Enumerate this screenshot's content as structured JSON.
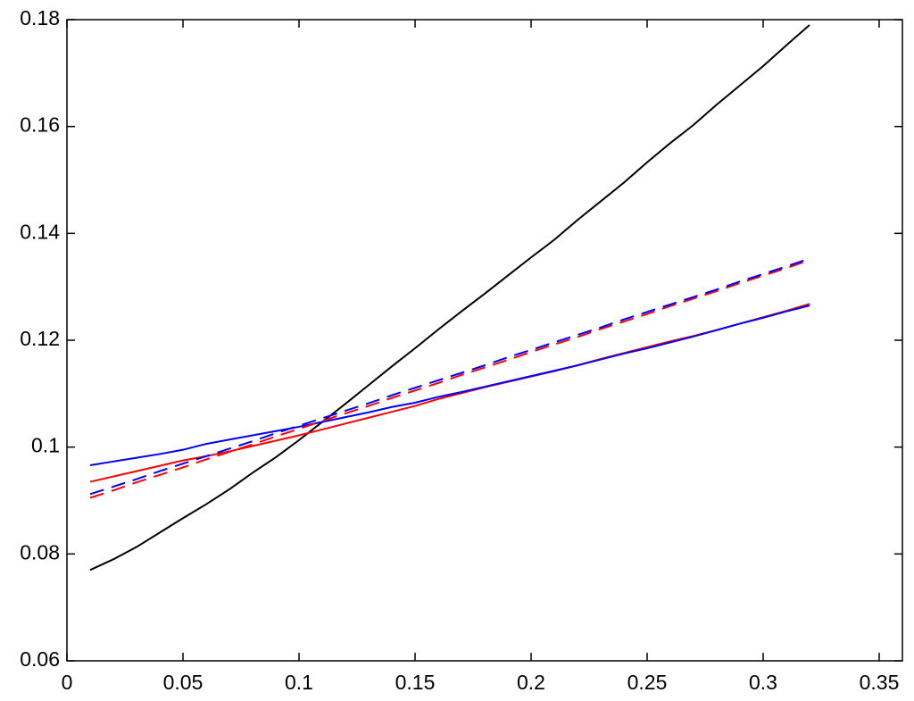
{
  "chart_data": {
    "type": "line",
    "x": [
      0.01,
      0.02,
      0.03,
      0.04,
      0.05,
      0.06,
      0.07,
      0.08,
      0.09,
      0.1,
      0.11,
      0.12,
      0.13,
      0.14,
      0.15,
      0.16,
      0.17,
      0.18,
      0.19,
      0.2,
      0.21,
      0.22,
      0.23,
      0.24,
      0.25,
      0.26,
      0.27,
      0.28,
      0.29,
      0.3,
      0.31,
      0.32
    ],
    "series": [
      {
        "color": "#000000",
        "dashed": false,
        "values": [
          0.077,
          0.079,
          0.0813,
          0.084,
          0.0867,
          0.0893,
          0.0921,
          0.0952,
          0.0981,
          0.1013,
          0.1047,
          0.1081,
          0.1116,
          0.1151,
          0.1185,
          0.122,
          0.1254,
          0.1287,
          0.1321,
          0.1355,
          0.1388,
          0.1425,
          0.146,
          0.1495,
          0.1533,
          0.1569,
          0.1603,
          0.1641,
          0.1677,
          0.1713,
          0.1752,
          0.179
        ]
      },
      {
        "color": "#ff0000",
        "dashed": false,
        "values": [
          0.0935,
          0.0945,
          0.0955,
          0.0965,
          0.0975,
          0.0983,
          0.0992,
          0.1002,
          0.1012,
          0.1022,
          0.1033,
          0.1044,
          0.1055,
          0.1066,
          0.1077,
          0.109,
          0.1101,
          0.1112,
          0.1122,
          0.1132,
          0.1142,
          0.1153,
          0.1165,
          0.1176,
          0.1187,
          0.1198,
          0.1208,
          0.1219,
          0.1231,
          0.1243,
          0.1255,
          0.1268
        ]
      },
      {
        "color": "#0000ff",
        "dashed": false,
        "values": [
          0.0966,
          0.0973,
          0.098,
          0.0987,
          0.0995,
          0.1006,
          0.1014,
          0.1022,
          0.103,
          0.1038,
          0.1047,
          0.1056,
          0.1065,
          0.1075,
          0.1083,
          0.1094,
          0.1103,
          0.1113,
          0.1123,
          0.1133,
          0.1143,
          0.1153,
          0.1164,
          0.1175,
          0.1185,
          0.1196,
          0.1207,
          0.1219,
          0.1231,
          0.1242,
          0.1254,
          0.1265
        ]
      },
      {
        "color": "#ff0000",
        "dashed": true,
        "values": [
          0.0905,
          0.0919,
          0.0934,
          0.0948,
          0.0962,
          0.0977,
          0.0991,
          0.1005,
          0.102,
          0.1034,
          0.1049,
          0.1063,
          0.1077,
          0.1092,
          0.1106,
          0.112,
          0.1135,
          0.1149,
          0.1163,
          0.1178,
          0.1192,
          0.1206,
          0.1221,
          0.1235,
          0.1249,
          0.1264,
          0.1278,
          0.1292,
          0.1307,
          0.1321,
          0.1335,
          0.135
        ]
      },
      {
        "color": "#0000ff",
        "dashed": true,
        "values": [
          0.0912,
          0.0926,
          0.094,
          0.0955,
          0.0969,
          0.0983,
          0.0997,
          0.1011,
          0.1026,
          0.104,
          0.1054,
          0.1068,
          0.1082,
          0.1097,
          0.1111,
          0.1125,
          0.1139,
          0.1153,
          0.1168,
          0.1182,
          0.1196,
          0.121,
          0.1224,
          0.1239,
          0.1253,
          0.1267,
          0.1281,
          0.1295,
          0.131,
          0.1324,
          0.1338,
          0.1353
        ]
      }
    ],
    "xlim": [
      0,
      0.36
    ],
    "xticks": [
      0,
      0.05,
      0.1,
      0.15,
      0.2,
      0.25,
      0.3,
      0.35
    ],
    "ylim": [
      0.06,
      0.18
    ],
    "yticks": [
      0.06,
      0.08,
      0.1,
      0.12,
      0.14,
      0.16,
      0.18
    ],
    "grid": false
  }
}
